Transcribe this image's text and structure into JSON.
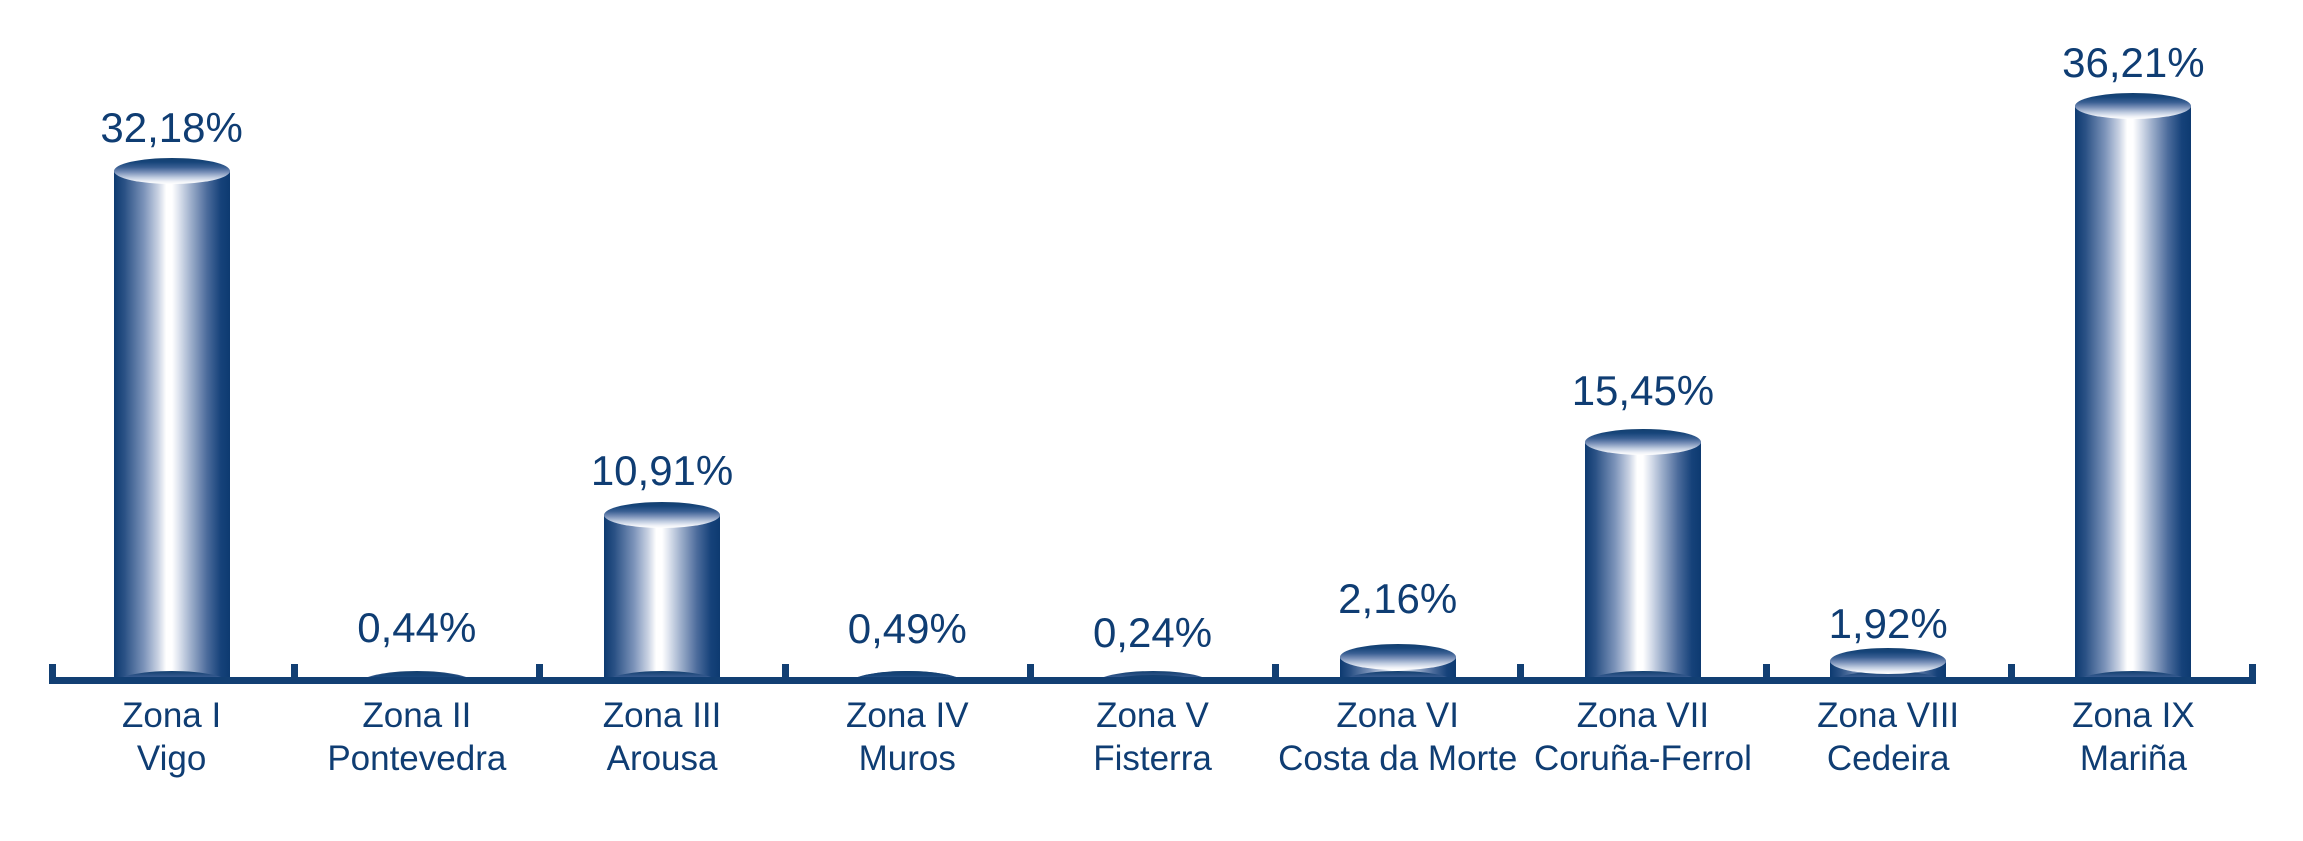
{
  "chart_data": {
    "type": "bar",
    "variant": "3d-cylinder",
    "title": "",
    "xlabel": "",
    "ylabel": "",
    "unit": "%",
    "decimal_separator": ",",
    "grid": false,
    "legend": false,
    "y_axis_visible": false,
    "ylim": [
      0,
      40
    ],
    "categories": [
      "Zona I Vigo",
      "Zona II Pontevedra",
      "Zona III Arousa",
      "Zona IV Muros",
      "Zona V Fisterra",
      "Zona VI Costa da Morte",
      "Zona VII Coruña-Ferrol",
      "Zona VIII Cedeira",
      "Zona IX Mariña"
    ],
    "category_lines": [
      [
        "Zona I",
        "Vigo"
      ],
      [
        "Zona II",
        "Pontevedra"
      ],
      [
        "Zona III",
        "Arousa"
      ],
      [
        "Zona IV",
        "Muros"
      ],
      [
        "Zona V",
        "Fisterra"
      ],
      [
        "Zona VI",
        "Costa da Morte"
      ],
      [
        "Zona VII",
        "Coruña-Ferrol"
      ],
      [
        "Zona VIII",
        "Cedeira"
      ],
      [
        "Zona IX",
        "Mariña"
      ]
    ],
    "values": [
      32.18,
      0.44,
      10.91,
      0.49,
      0.24,
      2.16,
      15.45,
      1.92,
      36.21
    ],
    "value_labels": [
      "32,18%",
      "0,44%",
      "10,91%",
      "0,49%",
      "0,24%",
      "2,16%",
      "15,45%",
      "1,92%",
      "36,21%"
    ],
    "colors": {
      "bar_dark": "#0d3a70",
      "bar_highlight": "#ffffff",
      "axis": "#123f73",
      "label_text": "#0f3d73",
      "background": "#ffffff"
    }
  }
}
